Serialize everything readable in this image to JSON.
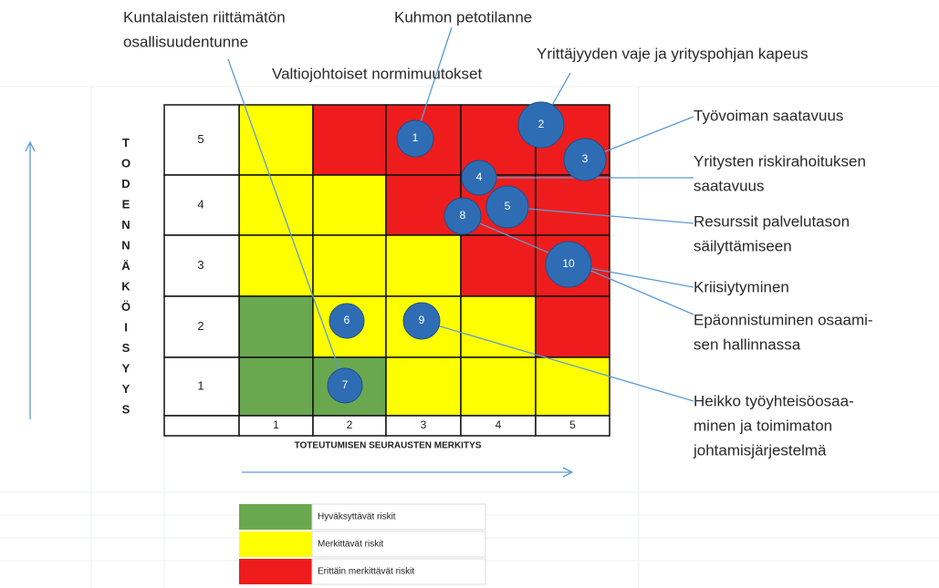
{
  "y_axis_label": "TODENNÄKÖISYYS",
  "x_axis_label": "TOTEUTUMISEN SEURAUSTEN MERKITYS",
  "row_labels": [
    5,
    4,
    3,
    2,
    1
  ],
  "column_labels": [
    1,
    2,
    3,
    4,
    5
  ],
  "cells": [
    [
      "#ffff00",
      "#ee1c1c",
      "#ee1c1c",
      "#ee1c1c",
      "#ee1c1c"
    ],
    [
      "#ffff00",
      "#ffff00",
      "#ee1c1c",
      "#ee1c1c",
      "#ee1c1c"
    ],
    [
      "#ffff00",
      "#ffff00",
      "#ffff00",
      "#ee1c1c",
      "#ee1c1c"
    ],
    [
      "#6aa84f",
      "#ffff00",
      "#ffff00",
      "#ffff00",
      "#ee1c1c"
    ],
    [
      "#6aa84f",
      "#6aa84f",
      "#ffff00",
      "#ffff00",
      "#ffff00"
    ]
  ],
  "risks": [
    {
      "number": 1,
      "label": [
        "Kuhmon petotilanne"
      ]
    },
    {
      "number": 2,
      "label": [
        "Yrittäjyyden vaje ja yrityspohjan kapeus"
      ]
    },
    {
      "number": 3,
      "label": [
        "Työvoiman saatavuus"
      ]
    },
    {
      "number": 4,
      "label": [
        "Yritysten riskirahoituksen",
        "saatavuus"
      ]
    },
    {
      "number": 5,
      "label": [
        "Resurssit palvelutason",
        "säilyttämiseen"
      ]
    },
    {
      "number": 6,
      "label": [
        "Valtiojohtoiset normimuutokset"
      ]
    },
    {
      "number": 7,
      "label": [
        "Kuntalaisten riittämätön",
        "osallisuudentunne"
      ]
    },
    {
      "number": 8,
      "label": [
        "Epäonnistuminen osaami-",
        "sen hallinnassa"
      ]
    },
    {
      "number": 9,
      "label": [
        "Heikko työyhteisöosaa-",
        "minen ja toimimaton",
        "johtamisjärjestelmä"
      ]
    },
    {
      "number": 10,
      "label": [
        "Kriisiytyminen"
      ]
    }
  ],
  "legend": [
    {
      "color": "#6aa84f",
      "label": "Hyväksyttävät riskit"
    },
    {
      "color": "#ffff00",
      "label": "Merkittävät riskit"
    },
    {
      "color": "#ee1c1c",
      "label": "Erittäin merkittävät riskit"
    }
  ]
}
